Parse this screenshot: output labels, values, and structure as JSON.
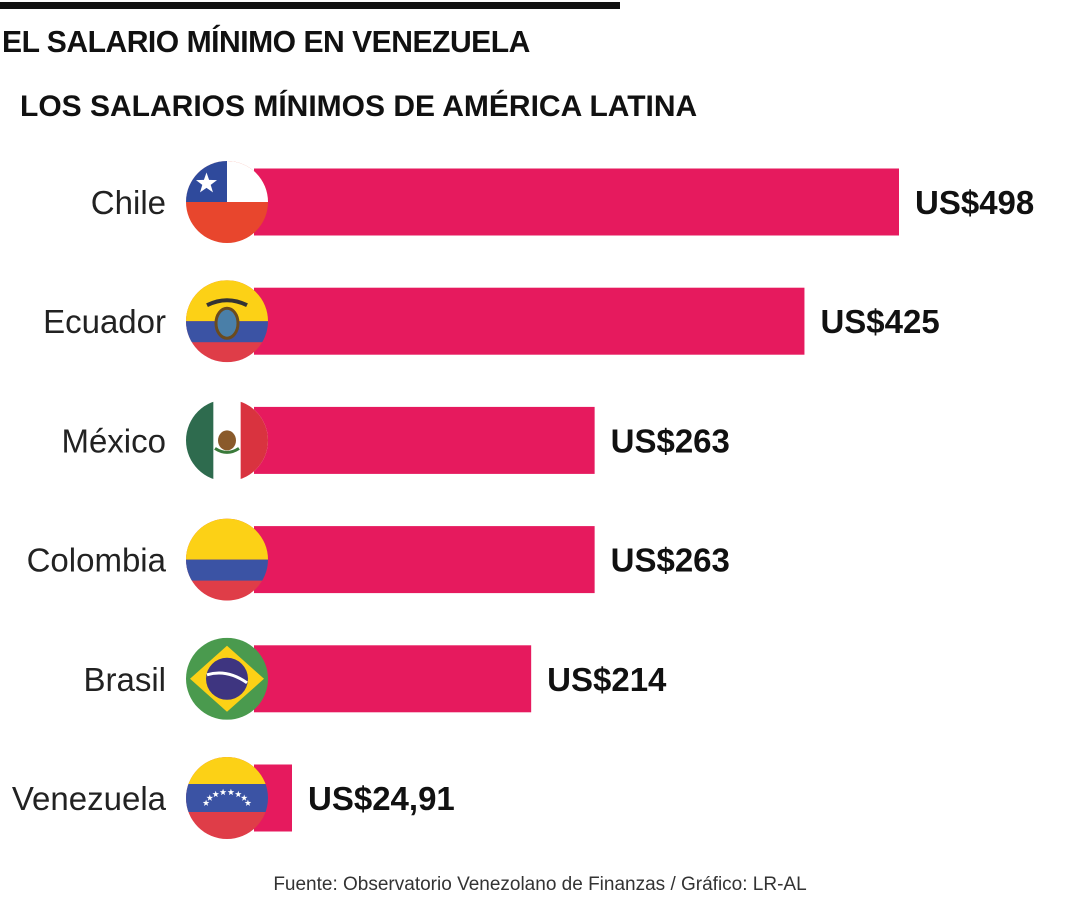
{
  "title": "EL SALARIO MÍNIMO EN VENEZUELA",
  "source": "Fuente: Observatorio Venezolano de Finanzas / Gráfico: LR-AL",
  "colors": {
    "bar": "#e61a5e",
    "text": "#111111"
  },
  "chart_data": {
    "type": "bar",
    "orientation": "horizontal",
    "title": "LOS SALARIOS MÍNIMOS DE AMÉRICA LATINA",
    "unit": "US$",
    "categories": [
      "Chile",
      "Ecuador",
      "México",
      "Colombia",
      "Brasil",
      "Venezuela"
    ],
    "values": [
      498,
      425,
      263,
      263,
      214,
      24.91
    ],
    "labels": [
      "US$498",
      "US$425",
      "US$263",
      "US$263",
      "US$214",
      "US$24,91"
    ],
    "flags": [
      "chile-flag-icon",
      "ecuador-flag-icon",
      "mexico-flag-icon",
      "colombia-flag-icon",
      "brazil-flag-icon",
      "venezuela-flag-icon"
    ],
    "xlim": [
      0,
      498
    ],
    "grid": false
  }
}
